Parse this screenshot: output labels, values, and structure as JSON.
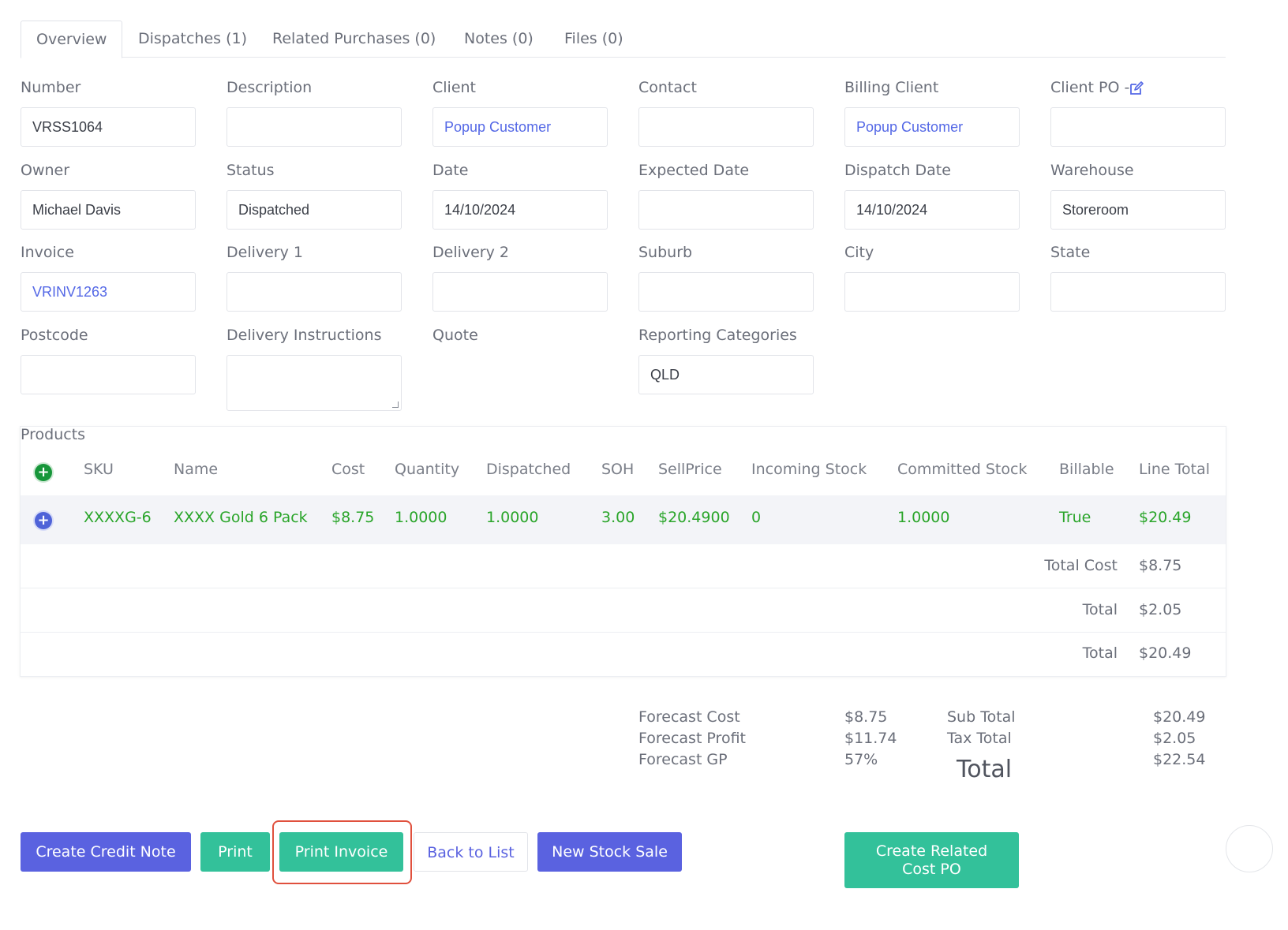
{
  "tabs": [
    {
      "label": "Overview",
      "active": true
    },
    {
      "label": "Dispatches (1)"
    },
    {
      "label": "Related Purchases (0)"
    },
    {
      "label": "Notes (0)"
    },
    {
      "label": "Files (0)"
    }
  ],
  "fields": {
    "number": {
      "label": "Number",
      "value": "VRSS1064"
    },
    "description": {
      "label": "Description",
      "value": ""
    },
    "client": {
      "label": "Client",
      "value": "Popup Customer"
    },
    "contact": {
      "label": "Contact",
      "value": ""
    },
    "billing_client": {
      "label": "Billing Client",
      "value": "Popup Customer"
    },
    "client_po": {
      "label": "Client PO -",
      "value": ""
    },
    "owner": {
      "label": "Owner",
      "value": "Michael Davis"
    },
    "status": {
      "label": "Status",
      "value": "Dispatched"
    },
    "date": {
      "label": "Date",
      "value": "14/10/2024"
    },
    "expected_date": {
      "label": "Expected Date",
      "value": ""
    },
    "dispatch_date": {
      "label": "Dispatch Date",
      "value": "14/10/2024"
    },
    "warehouse": {
      "label": "Warehouse",
      "value": "Storeroom"
    },
    "invoice": {
      "label": "Invoice",
      "value": "VRINV1263"
    },
    "delivery1": {
      "label": "Delivery 1",
      "value": ""
    },
    "delivery2": {
      "label": "Delivery 2",
      "value": ""
    },
    "suburb": {
      "label": "Suburb",
      "value": ""
    },
    "city": {
      "label": "City",
      "value": ""
    },
    "state": {
      "label": "State",
      "value": ""
    },
    "postcode": {
      "label": "Postcode",
      "value": ""
    },
    "delivery_instructions": {
      "label": "Delivery Instructions",
      "value": ""
    },
    "quote": {
      "label": "Quote"
    },
    "reporting_categories": {
      "label": "Reporting Categories",
      "value": "QLD"
    }
  },
  "products": {
    "title": "Products",
    "columns": [
      "SKU",
      "Name",
      "Cost",
      "Quantity",
      "Dispatched",
      "SOH",
      "SellPrice",
      "Incoming Stock",
      "Committed Stock",
      "Billable",
      "Line Total"
    ],
    "rows": [
      {
        "sku": "XXXXG-6",
        "name": "XXXX Gold 6 Pack",
        "cost": "$8.75",
        "quantity": "1.0000",
        "dispatched": "1.0000",
        "soh": "3.00",
        "sellprice": "$20.4900",
        "incoming": "0",
        "committed": "1.0000",
        "billable": "True",
        "line_total": "$20.49"
      }
    ],
    "summary": [
      {
        "label": "Total Cost",
        "value": "$8.75"
      },
      {
        "label": "Total",
        "value": "$2.05"
      },
      {
        "label": "Total",
        "value": "$20.49"
      }
    ],
    "text_color": "#2aa52a"
  },
  "forecast": [
    {
      "label": "Forecast Cost",
      "value": "$8.75"
    },
    {
      "label": "Forecast Profit",
      "value": "$11.74"
    },
    {
      "label": "Forecast GP",
      "value": "57%"
    }
  ],
  "totals": [
    {
      "label": "Sub Total",
      "value": "$20.49"
    },
    {
      "label": "Tax Total",
      "value": "$2.05"
    },
    {
      "label": "Total",
      "value": "$22.54"
    }
  ],
  "buttons": {
    "create_credit_note": "Create Credit Note",
    "print": "Print",
    "print_invoice": "Print Invoice",
    "back_to_list": "Back to List",
    "new_stock_sale": "New Stock Sale",
    "create_related_cost_po_line1": "Create Related",
    "create_related_cost_po_line2": "Cost PO"
  },
  "icons": {
    "add_product": "plus-circle-icon",
    "expand_row": "plus-circle-icon",
    "edit_client_po": "edit-icon"
  },
  "colors": {
    "primary": "#5a62e0",
    "teal": "#33c19a",
    "link": "#5468e6",
    "highlight": "#e0503d"
  }
}
